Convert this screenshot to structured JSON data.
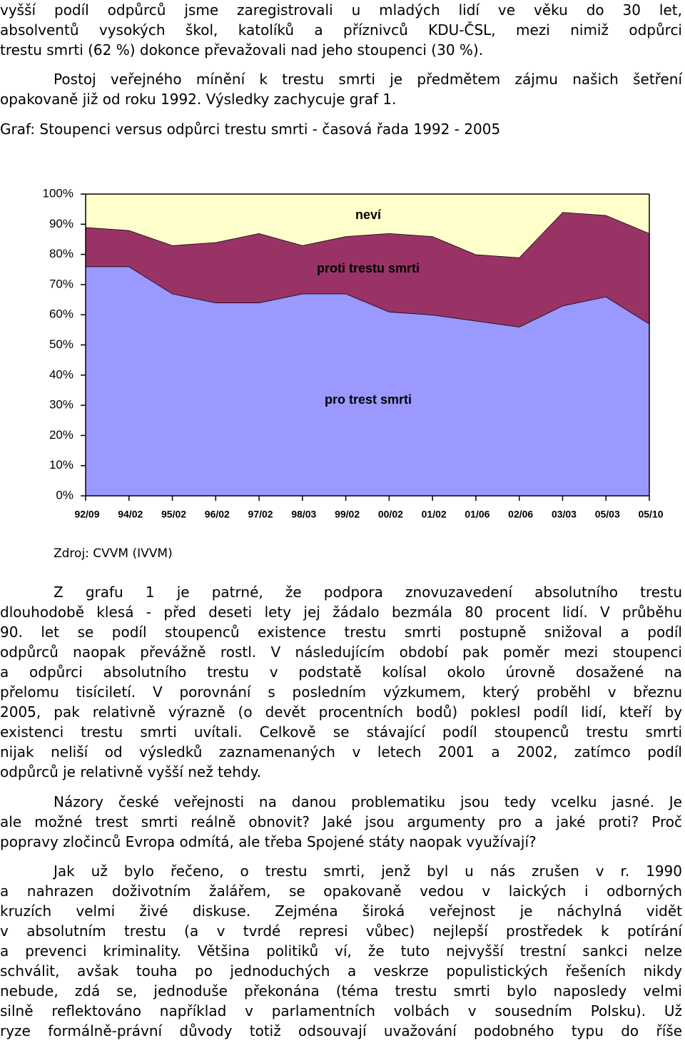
{
  "paragraphs": [
    {
      "lines": [
        "vyšší podíl odpůrců jsme zaregistrovali u mladých lidí ve věku do 30 let,",
        "absolventů vysokých škol, katolíků a příznivců KDU-ČSL, mezi nimiž odpůrci",
        "trestu smrti (62 %) dokonce převažovali nad jeho stoupenci (30 %)."
      ]
    },
    {
      "lines": [
        "Postoj veřejného mínění k trestu smrti je předmětem zájmu našich šetření",
        "opakovaně již od roku 1992. Výsledky zachycuje graf 1."
      ]
    },
    {
      "lines": [
        "Graf: Stoupenci versus odpůrci trestu smrti - časová řada 1992 - 2005"
      ]
    },
    {
      "lines": [
        "Zdroj: CVVM (IVVM)"
      ]
    },
    {
      "lines": [
        "Z grafu 1 je patrné, že podpora znovuzavedení absolutního trestu",
        "dlouhodobě klesá - před deseti lety jej žádalo bezmála 80 procent lidí. V průběhu",
        "90. let se podíl stoupenců existence trestu smrti postupně snižoval a podíl",
        "odpůrců naopak převážně rostl. V následujícím období pak poměr mezi stoupenci",
        "a odpůrci absolutního trestu v podstatě kolísal okolo úrovně dosažené na",
        "přelomu tisíciletí. V porovnání s posledním výzkumem, který proběhl v březnu",
        "2005, pak relativně výrazně (o devět procentních bodů) poklesl podíl lidí, kteří by",
        "existenci trestu smrti uvítali. Celkově se stávající podíl stoupenců trestu smrti",
        "nijak neliší od výsledků zaznamenaných v letech 2001 a 2002, zatímco podíl",
        "odpůrců je relativně vyšší než tehdy."
      ]
    },
    {
      "lines": [
        "Názory české veřejnosti na danou problematiku jsou tedy vcelku jasné. Je",
        "ale možné trest smrti reálně obnovit? Jaké jsou argumenty pro a jaké proti? Proč",
        "popravy zločinců Evropa odmítá, ale třeba Spojené státy naopak využívají?"
      ]
    },
    {
      "lines": [
        "Jak už bylo řečeno, o trestu smrti, jenž byl u nás zrušen v r. 1990",
        "a nahrazen doživotním žalářem, se opakovaně vedou v laických i odborných",
        "kruzích velmi živé diskuse. Zejména široká veřejnost je náchylná vidět",
        "v absolutním trestu (a v tvrdé represi vůbec) nejlepší prostředek k potírání",
        "a prevenci kriminality. Většina politiků ví, že tuto nejvyšší trestní sankci nelze",
        "schválit, avšak touha po jednoduchých a veskrze populistických řešeních nikdy",
        "nebude, zdá se, jednoduše překonána (téma trestu smrti bylo naposledy velmi",
        "silně reflektováno například v parlamentních volbách v sousedním Polsku). Už",
        "ryze formálně-právní důvody totiž odsouvají uvažování podobného typu do říše"
      ]
    }
  ],
  "chart_data": {
    "type": "area",
    "stacked": true,
    "categories": [
      "92/09",
      "94/02",
      "95/02",
      "96/02",
      "97/02",
      "98/03",
      "99/02",
      "00/02",
      "01/02",
      "01/06",
      "02/06",
      "03/03",
      "05/03",
      "05/10"
    ],
    "series": [
      {
        "name": "pro trest smrti",
        "color": "#9999ff",
        "values": [
          76,
          76,
          67,
          64,
          64,
          67,
          67,
          61,
          60,
          58,
          56,
          63,
          66,
          57
        ]
      },
      {
        "name": "proti trestu smrti",
        "color": "#993366",
        "values": [
          13,
          12,
          16,
          20,
          23,
          16,
          19,
          26,
          26,
          22,
          23,
          31,
          27,
          30
        ]
      },
      {
        "name": "neví",
        "color": "#ffffcc",
        "values": [
          11,
          12,
          17,
          16,
          13,
          17,
          14,
          13,
          14,
          20,
          21,
          6,
          7,
          13
        ]
      }
    ],
    "ylim": [
      0,
      100
    ],
    "yticks": [
      {
        "value": 0,
        "label": "0%"
      },
      {
        "value": 10,
        "label": "10%"
      },
      {
        "value": 20,
        "label": "20%"
      },
      {
        "value": 30,
        "label": "30%"
      },
      {
        "value": 40,
        "label": "40%"
      },
      {
        "value": 50,
        "label": "50%"
      },
      {
        "value": 60,
        "label": "60%"
      },
      {
        "value": 70,
        "label": "70%"
      },
      {
        "value": 80,
        "label": "80%"
      },
      {
        "value": 90,
        "label": "90%"
      },
      {
        "value": 100,
        "label": "100%"
      }
    ],
    "grid": false
  }
}
